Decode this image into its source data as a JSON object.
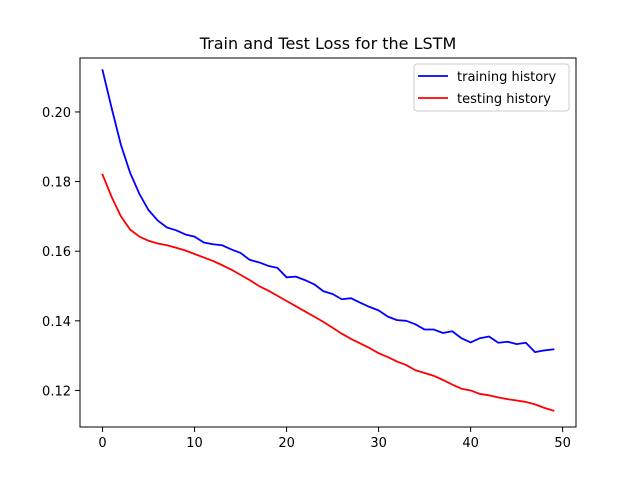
{
  "chart_data": {
    "type": "line",
    "title": "Train and Test Loss for the LSTM",
    "xlabel": "",
    "ylabel": "",
    "xlim": [
      -2.45,
      51.45
    ],
    "ylim": [
      0.1095,
      0.2155
    ],
    "xticks": [
      0,
      10,
      20,
      30,
      40,
      50
    ],
    "yticks": [
      0.12,
      0.14,
      0.16,
      0.18,
      0.2
    ],
    "ytick_labels": [
      "0.12",
      "0.14",
      "0.16",
      "0.18",
      "0.20"
    ],
    "grid": false,
    "legend_position": "top-right",
    "x": [
      0,
      1,
      2,
      3,
      4,
      5,
      6,
      7,
      8,
      9,
      10,
      11,
      12,
      13,
      14,
      15,
      16,
      17,
      18,
      19,
      20,
      21,
      22,
      23,
      24,
      25,
      26,
      27,
      28,
      29,
      30,
      31,
      32,
      33,
      34,
      35,
      36,
      37,
      38,
      39,
      40,
      41,
      42,
      43,
      44,
      45,
      46,
      47,
      48,
      49
    ],
    "series": [
      {
        "name": "training history",
        "color": "#0000ff",
        "values": [
          0.212,
          0.201,
          0.1905,
          0.1825,
          0.1765,
          0.1718,
          0.1688,
          0.1668,
          0.166,
          0.1648,
          0.1642,
          0.1625,
          0.162,
          0.1617,
          0.1605,
          0.1595,
          0.1575,
          0.1568,
          0.1558,
          0.1552,
          0.1525,
          0.1527,
          0.1517,
          0.1505,
          0.1485,
          0.1477,
          0.1462,
          0.1465,
          0.1452,
          0.144,
          0.143,
          0.1412,
          0.1402,
          0.14,
          0.139,
          0.1375,
          0.1375,
          0.1365,
          0.137,
          0.135,
          0.1338,
          0.135,
          0.1355,
          0.1337,
          0.134,
          0.1333,
          0.1337,
          0.131,
          0.1315,
          0.1318
        ]
      },
      {
        "name": "testing history",
        "color": "#ff0000",
        "values": [
          0.182,
          0.1755,
          0.17,
          0.1662,
          0.1642,
          0.163,
          0.1622,
          0.1617,
          0.161,
          0.1602,
          0.1592,
          0.1582,
          0.1572,
          0.156,
          0.1547,
          0.1532,
          0.1517,
          0.15,
          0.1487,
          0.1472,
          0.1457,
          0.1442,
          0.1427,
          0.1412,
          0.1397,
          0.138,
          0.1363,
          0.1348,
          0.1335,
          0.1322,
          0.1307,
          0.1296,
          0.1283,
          0.1273,
          0.1258,
          0.125,
          0.1242,
          0.123,
          0.1217,
          0.1205,
          0.12,
          0.119,
          0.1186,
          0.118,
          0.1175,
          0.1171,
          0.1167,
          0.116,
          0.115,
          0.1142
        ]
      }
    ]
  }
}
